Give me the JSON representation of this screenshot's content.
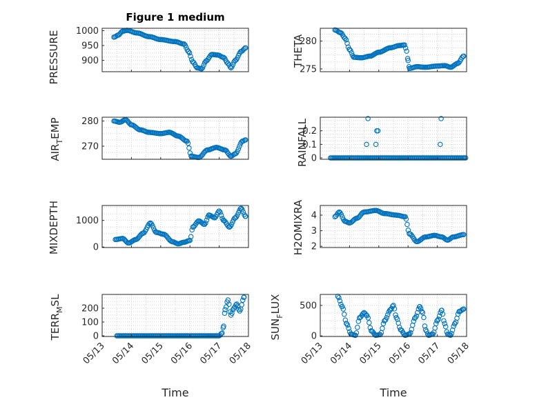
{
  "figure": {
    "title": "Figure 1 medium",
    "marker_color": "#0072BD",
    "grid": true
  },
  "chart_data": [
    {
      "type": "scatter",
      "ylabel": "PRESSURE",
      "title": "Figure 1 medium",
      "xlim": [
        0,
        5
      ],
      "ylim": [
        862,
        1008
      ],
      "yticks": [
        900,
        950,
        1000
      ],
      "ytick_labels": [
        "900",
        "950",
        "1000"
      ],
      "xtick_labels": [],
      "keypoints": [
        [
          0.4,
          978
        ],
        [
          0.55,
          985
        ],
        [
          0.7,
          998
        ],
        [
          0.85,
          1001
        ],
        [
          1.2,
          992
        ],
        [
          1.6,
          980
        ],
        [
          2.0,
          970
        ],
        [
          2.5,
          963
        ],
        [
          2.8,
          955
        ],
        [
          2.95,
          930
        ],
        [
          3.1,
          895
        ],
        [
          3.25,
          875
        ],
        [
          3.4,
          872
        ],
        [
          3.55,
          898
        ],
        [
          3.75,
          920
        ],
        [
          3.95,
          918
        ],
        [
          4.15,
          910
        ],
        [
          4.3,
          890
        ],
        [
          4.4,
          875
        ],
        [
          4.55,
          900
        ],
        [
          4.75,
          930
        ],
        [
          4.9,
          942
        ]
      ]
    },
    {
      "type": "scatter",
      "ylabel": "THETA",
      "xlim": [
        0,
        5
      ],
      "ylim": [
        274.5,
        282.3
      ],
      "yticks": [
        275,
        280
      ],
      "ytick_labels": [
        "275",
        "280"
      ],
      "xtick_labels": [],
      "keypoints": [
        [
          0.5,
          282
        ],
        [
          0.7,
          281.5
        ],
        [
          0.85,
          280.5
        ],
        [
          1.0,
          278.5
        ],
        [
          1.15,
          277.1
        ],
        [
          1.4,
          277.0
        ],
        [
          1.7,
          277.3
        ],
        [
          2.0,
          278.0
        ],
        [
          2.4,
          278.8
        ],
        [
          2.7,
          279.2
        ],
        [
          2.88,
          279.3
        ],
        [
          2.95,
          278.2
        ],
        [
          3.0,
          276.5
        ],
        [
          3.05,
          275.1
        ],
        [
          3.3,
          275.4
        ],
        [
          3.6,
          275.3
        ],
        [
          3.95,
          275.5
        ],
        [
          4.25,
          275.6
        ],
        [
          4.45,
          275.3
        ],
        [
          4.7,
          276.0
        ],
        [
          4.9,
          277.3
        ]
      ]
    },
    {
      "type": "scatter",
      "ylabel": "AIR_TEMP",
      "xlim": [
        0,
        5
      ],
      "ylim": [
        264.8,
        281.5
      ],
      "yticks": [
        270,
        280
      ],
      "ytick_labels": [
        "270",
        "280"
      ],
      "xtick_labels": [],
      "keypoints": [
        [
          0.4,
          280
        ],
        [
          0.6,
          279.5
        ],
        [
          0.8,
          280.5
        ],
        [
          1.0,
          278.5
        ],
        [
          1.3,
          276.5
        ],
        [
          1.6,
          275.5
        ],
        [
          2.0,
          275.0
        ],
        [
          2.3,
          275.5
        ],
        [
          2.6,
          274.0
        ],
        [
          2.9,
          272.0
        ],
        [
          3.05,
          266.0
        ],
        [
          3.3,
          265.5
        ],
        [
          3.6,
          268.5
        ],
        [
          3.9,
          269.5
        ],
        [
          4.2,
          268.5
        ],
        [
          4.4,
          266.0
        ],
        [
          4.55,
          267.0
        ],
        [
          4.8,
          272.0
        ],
        [
          4.9,
          272.5
        ]
      ]
    },
    {
      "type": "scatter",
      "ylabel": "RAINFALL",
      "xlim": [
        0,
        5
      ],
      "ylim": [
        -0.01,
        0.3
      ],
      "yticks": [
        0,
        0.1,
        0.2
      ],
      "ytick_labels": [
        "0",
        "0.1",
        "0.2"
      ],
      "xtick_labels": [],
      "baseline": {
        "from": 0.35,
        "to": 4.98,
        "value": 0
      },
      "extra_points": [
        [
          1.58,
          0.1
        ],
        [
          1.63,
          0.29
        ],
        [
          1.9,
          0.1
        ],
        [
          1.93,
          0.2
        ],
        [
          1.97,
          0.2
        ],
        [
          4.1,
          0.1
        ],
        [
          4.13,
          0.29
        ]
      ]
    },
    {
      "type": "scatter",
      "ylabel": "MIXDEPTH",
      "xlim": [
        0,
        5
      ],
      "ylim": [
        -20,
        1560
      ],
      "yticks": [
        0,
        1000
      ],
      "ytick_labels": [
        "0",
        "1000"
      ],
      "xtick_labels": [],
      "keypoints": [
        [
          0.45,
          280
        ],
        [
          0.7,
          320
        ],
        [
          0.9,
          150
        ],
        [
          1.15,
          280
        ],
        [
          1.4,
          520
        ],
        [
          1.65,
          900
        ],
        [
          1.85,
          550
        ],
        [
          2.1,
          480
        ],
        [
          2.4,
          200
        ],
        [
          2.6,
          120
        ],
        [
          2.8,
          180
        ],
        [
          3.0,
          250
        ],
        [
          3.1,
          750
        ],
        [
          3.3,
          980
        ],
        [
          3.5,
          850
        ],
        [
          3.65,
          1200
        ],
        [
          3.85,
          1100
        ],
        [
          4.0,
          1350
        ],
        [
          4.15,
          1000
        ],
        [
          4.35,
          750
        ],
        [
          4.55,
          1100
        ],
        [
          4.75,
          1450
        ],
        [
          4.9,
          1150
        ]
      ]
    },
    {
      "type": "scatter",
      "ylabel": "H2OMIXRA",
      "xlim": [
        0,
        5
      ],
      "ylim": [
        1.92,
        4.62
      ],
      "yticks": [
        2,
        3,
        4
      ],
      "ytick_labels": [
        "2",
        "3",
        "4"
      ],
      "xtick_labels": [],
      "keypoints": [
        [
          0.5,
          3.9
        ],
        [
          0.65,
          4.2
        ],
        [
          0.85,
          3.6
        ],
        [
          1.0,
          3.5
        ],
        [
          1.25,
          3.8
        ],
        [
          1.5,
          4.2
        ],
        [
          1.9,
          4.3
        ],
        [
          2.2,
          4.1
        ],
        [
          2.6,
          4.0
        ],
        [
          2.9,
          3.9
        ],
        [
          3.05,
          2.8
        ],
        [
          3.3,
          2.3
        ],
        [
          3.6,
          2.6
        ],
        [
          3.9,
          2.7
        ],
        [
          4.15,
          2.6
        ],
        [
          4.35,
          2.4
        ],
        [
          4.55,
          2.6
        ],
        [
          4.9,
          2.75
        ]
      ]
    },
    {
      "type": "scatter",
      "ylabel": "TERR_MSL",
      "xlim": [
        0,
        5
      ],
      "ylim": [
        -5,
        300
      ],
      "yticks": [
        0,
        100,
        200
      ],
      "ytick_labels": [
        "0",
        "100",
        "200"
      ],
      "xlabel": "Time",
      "xtick_labels": [
        "05/13",
        "05/14",
        "05/15",
        "05/16",
        "05/17",
        "05/18"
      ],
      "keypoints": [
        [
          0.5,
          0
        ],
        [
          4.0,
          0
        ],
        [
          4.1,
          20
        ],
        [
          4.15,
          70
        ],
        [
          4.2,
          190
        ],
        [
          4.3,
          260
        ],
        [
          4.4,
          150
        ],
        [
          4.5,
          200
        ],
        [
          4.6,
          230
        ],
        [
          4.7,
          180
        ],
        [
          4.85,
          280
        ]
      ]
    },
    {
      "type": "scatter",
      "ylabel": "SUN_FLUX",
      "xlim": [
        0,
        5
      ],
      "ylim": [
        -10,
        680
      ],
      "yticks": [
        0,
        500
      ],
      "ytick_labels": [
        "0",
        "500"
      ],
      "xlabel": "Time",
      "xtick_labels": [
        "05/13",
        "05/14",
        "05/15",
        "05/16",
        "05/17",
        "05/18"
      ],
      "keypoints": [
        [
          0.6,
          650
        ],
        [
          0.75,
          480
        ],
        [
          0.9,
          200
        ],
        [
          1.05,
          30
        ],
        [
          1.2,
          10
        ],
        [
          1.35,
          300
        ],
        [
          1.5,
          380
        ],
        [
          1.6,
          330
        ],
        [
          1.75,
          80
        ],
        [
          1.9,
          10
        ],
        [
          2.05,
          20
        ],
        [
          2.2,
          250
        ],
        [
          2.4,
          430
        ],
        [
          2.5,
          500
        ],
        [
          2.6,
          300
        ],
        [
          2.75,
          100
        ],
        [
          2.9,
          10
        ],
        [
          3.05,
          30
        ],
        [
          3.25,
          300
        ],
        [
          3.4,
          480
        ],
        [
          3.5,
          380
        ],
        [
          3.6,
          100
        ],
        [
          3.7,
          10
        ],
        [
          3.85,
          30
        ],
        [
          4.0,
          250
        ],
        [
          4.15,
          420
        ],
        [
          4.25,
          200
        ],
        [
          4.35,
          30
        ],
        [
          4.45,
          10
        ],
        [
          4.6,
          200
        ],
        [
          4.75,
          400
        ],
        [
          4.9,
          440
        ]
      ]
    }
  ]
}
